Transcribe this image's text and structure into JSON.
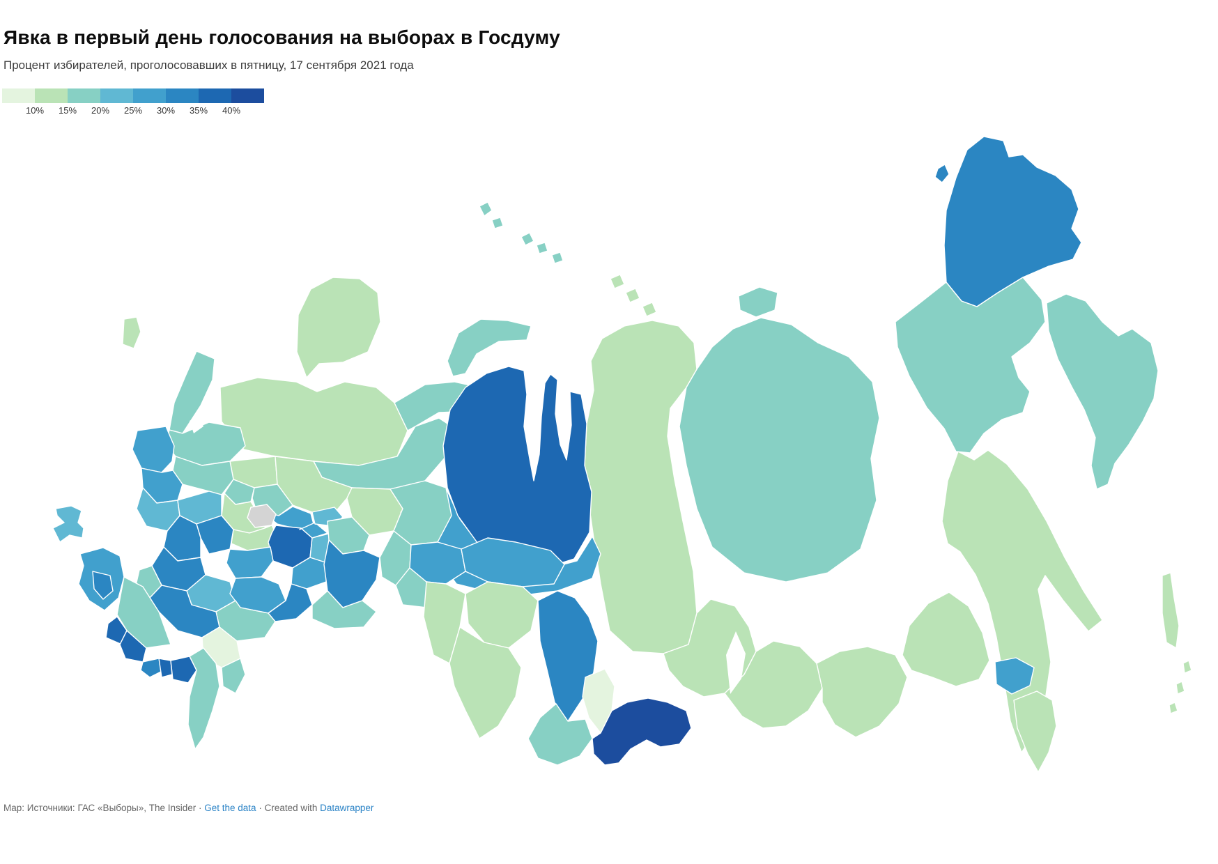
{
  "header": {
    "title": "Явка в первый день голосования на выборах в Госдуму",
    "subtitle": "Процент избирателей, проголосовавших в пятницу, 17 сентября 2021 года"
  },
  "legend": {
    "tick_labels": [
      "10%",
      "15%",
      "20%",
      "25%",
      "30%",
      "35%",
      "40%"
    ],
    "bin_colors": [
      "#e4f4df",
      "#bae3b6",
      "#87d0c4",
      "#60b8d3",
      "#41a0cd",
      "#2b86c2",
      "#1d68b2",
      "#1c4d9e"
    ],
    "no_data_color": "#d4d4d4"
  },
  "footer": {
    "attribution": "Map: Источники: ГАС «Выборы», The Insider",
    "separator": " · ",
    "get_data_label": "Get the data",
    "created_with_label": "Created with ",
    "datawrapper_label": "Datawrapper",
    "link_color": "#2b83c6"
  },
  "chart_data": {
    "type": "choropleth-map",
    "geography": "Russia",
    "legend_unit": "%",
    "bins": [
      "<10%",
      "10–15%",
      "15–20%",
      "20–25%",
      "25–30%",
      "30–35%",
      "35–40%",
      ">40%"
    ],
    "no_data_key": "nodata",
    "regions": {
      "krasnoyarsk": 1,
      "yakutia": 2,
      "khabarovsk": 1,
      "magadan": 2,
      "chukotka": 5,
      "kamchatka": 2,
      "arkhangelsk": 1,
      "komi": 2,
      "nenets": 2,
      "novaya_zemlya": 2,
      "murmansk": 1,
      "karelia": 2,
      "leningrad": 2,
      "pskov": 4,
      "kaliningrad": 1,
      "vologda": 1,
      "kirov": 1,
      "perm": 1,
      "tver": 2,
      "yaroslavl": 2,
      "kostroma": 2,
      "smolensk": 4,
      "bryansk": 3,
      "kaluga_west": 3,
      "moscow_obl": 1,
      "vladimir": 4,
      "tula": 5,
      "oryol": 5,
      "kursk": 5,
      "belgorod": 2,
      "voronezh": 3,
      "ryazan": 1,
      "tatarstan": 6,
      "lipetsk": 4,
      "penza": 4,
      "samara": 4,
      "ulyanovsk": 3,
      "chuvashia": 4,
      "mariel": 3,
      "udmurt": 2,
      "moscow_city": "nodata",
      "saratov": 5,
      "volgograd": 2,
      "rostov": 5,
      "kalmykia": 0,
      "astrakhan": 2,
      "dagestan": 2,
      "crimea": 3,
      "krasnodar": 4,
      "adygea": 5,
      "stavropol": 2,
      "karachay": 6,
      "kabardino": 6,
      "ossetia": 5,
      "ingush": 6,
      "chechnya": 6,
      "khanty": 4,
      "yamal": 6,
      "sverdlovsk": 2,
      "chelyabinsk": 2,
      "bashkir": 5,
      "orenburg": 2,
      "kurgan": 2,
      "tyumen": 4,
      "tomsk": 4,
      "omsk": 1,
      "novosibirsk": 1,
      "altai_krai": 1,
      "kemerovo": 5,
      "khakassia": 0,
      "altai_rep": 2,
      "tuva": 7,
      "irkutsk": 1,
      "buryatia": 1,
      "zabaikal": 1,
      "amur": 1,
      "jewish": 4,
      "primorye": 1,
      "sakhalin": 1,
      "kuril1": 1,
      "kuril2": 1,
      "kuril3": 1,
      "wrangel": 5,
      "franz1": 2,
      "franz2": 2,
      "arctic1": 2,
      "arctic2": 2,
      "arctic3": 2,
      "severnaya1": 1,
      "severnaya2": 1,
      "severnaya3": 1,
      "new_siberian": 2
    }
  }
}
